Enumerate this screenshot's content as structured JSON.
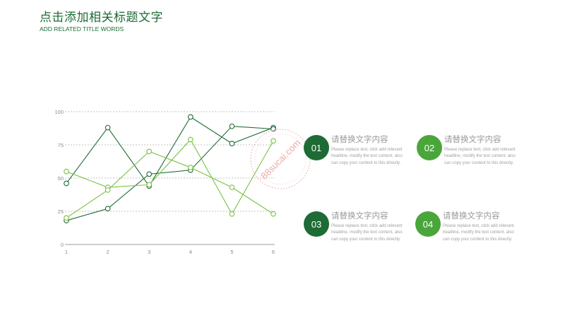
{
  "header": {
    "title": "点击添加相关标题文字",
    "subtitle": "ADD RELATED TITLE WORDS"
  },
  "colors": {
    "dark_green": "#1e6b35",
    "mid_green": "#4aa63a",
    "light_green": "#7ac143",
    "grid": "#b0b0b0",
    "axis_text": "#8a8a8a"
  },
  "chart_data": {
    "type": "line",
    "x": [
      1,
      2,
      3,
      4,
      5,
      6
    ],
    "categories": [
      "1",
      "2",
      "3",
      "4",
      "5",
      "6"
    ],
    "yticks": [
      0,
      25,
      50,
      75,
      100
    ],
    "ylim": [
      0,
      100
    ],
    "grid": "horizontal dotted",
    "series": [
      {
        "values": [
          46,
          88,
          44,
          96,
          76,
          88
        ],
        "color": "#1e6b35"
      },
      {
        "values": [
          18,
          27,
          53,
          56,
          89,
          87
        ],
        "color": "#1e6b35"
      },
      {
        "values": [
          55,
          43,
          45,
          79,
          23,
          78
        ],
        "color": "#7ac143"
      },
      {
        "values": [
          20,
          41,
          70,
          58,
          43,
          23
        ],
        "color": "#7ac143"
      }
    ]
  },
  "items": [
    {
      "num": "01",
      "title": "请替换文字内容",
      "desc": "Please replace text, click add relevant headline, modify the text content, also can copy your content to this directly.",
      "color": "#1e6b35"
    },
    {
      "num": "02",
      "title": "请替换文字内容",
      "desc": "Please replace text, click add relevant headline, modify the text content, also can copy your content to this directly.",
      "color": "#4aa63a"
    },
    {
      "num": "03",
      "title": "请替换文字内容",
      "desc": "Please replace text, click add relevant headline, modify the text content, also can copy your content to this directly.",
      "color": "#1e6b35"
    },
    {
      "num": "04",
      "title": "请替换文字内容",
      "desc": "Please replace text, click add relevant headline, modify the text content, also can copy your content to this directly.",
      "color": "#4aa63a"
    }
  ],
  "watermark": {
    "text": "88sucai.com"
  }
}
